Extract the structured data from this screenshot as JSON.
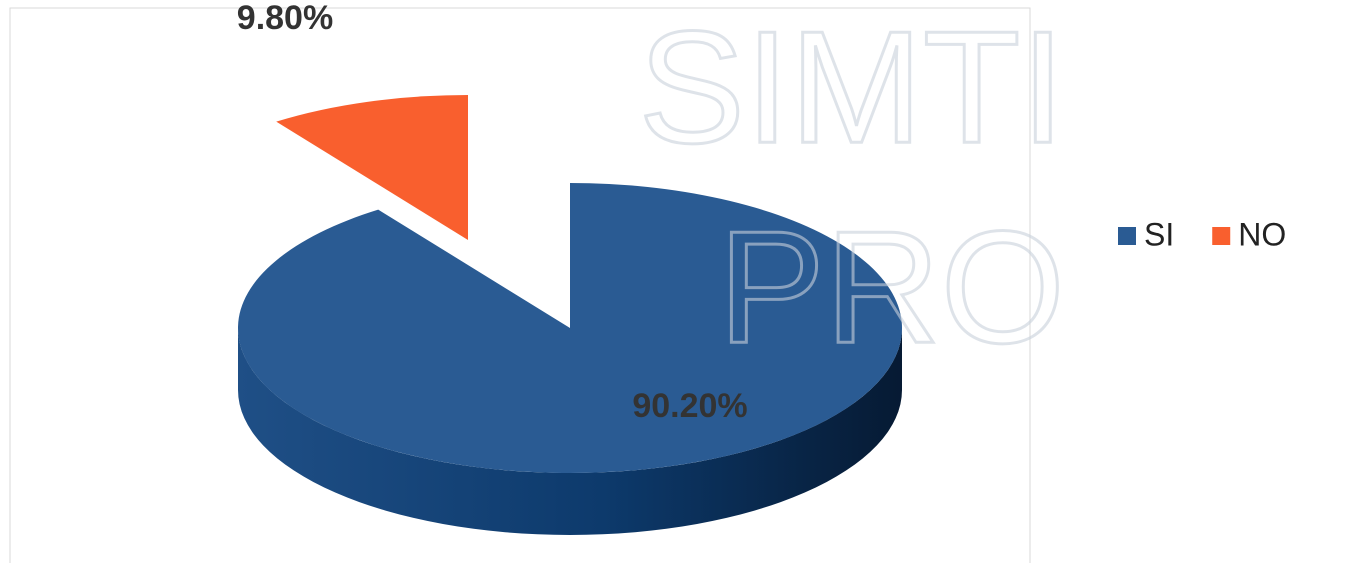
{
  "chart_data": {
    "type": "pie",
    "categories": [
      "SI",
      "NO"
    ],
    "values": [
      90.2,
      9.8
    ],
    "value_labels": [
      "90.20%",
      "9.80%"
    ],
    "colors": [
      "#2a5b93",
      "#f95f2e"
    ],
    "legend": "right",
    "watermark": [
      "SIMTI",
      "PRO"
    ]
  }
}
